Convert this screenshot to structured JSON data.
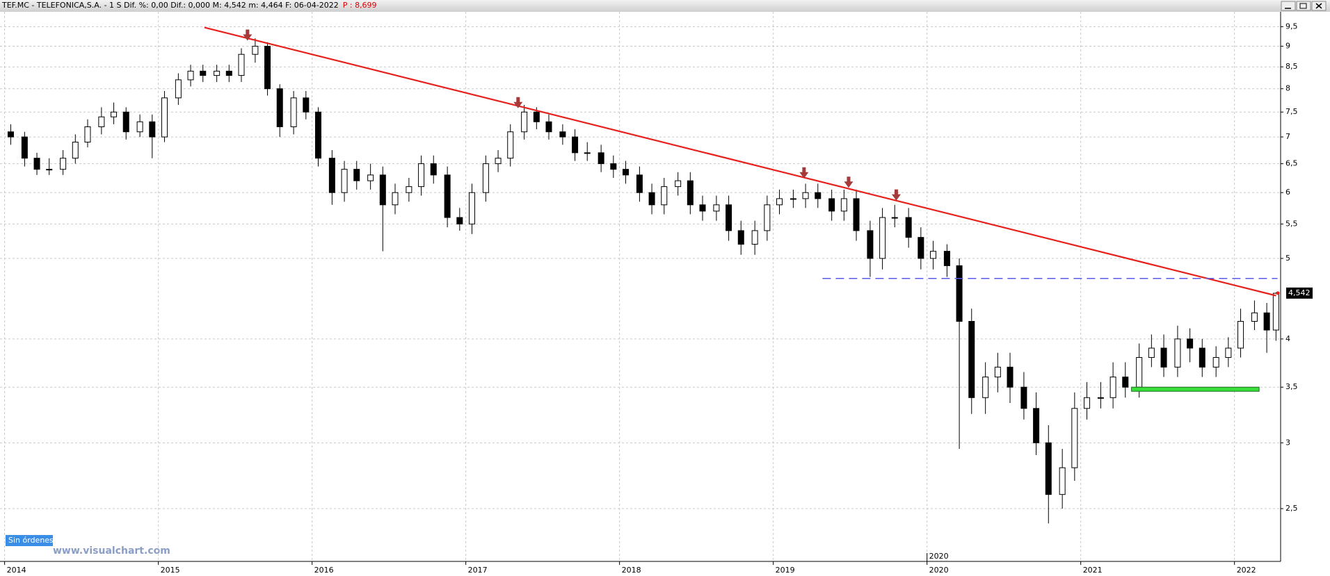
{
  "chart_data": {
    "type": "candlestick",
    "header": [
      "TEF.MC - TELEFONICA,S.A. -  1 S  Dif. %: 0,00  Dif.: 0,000  M: 4,542  m: 4,464  F: 06-04-2022",
      "P : 8,699"
    ],
    "x": [
      2014.04,
      2014.13,
      2014.21,
      2014.29,
      2014.38,
      2014.46,
      2014.54,
      2014.63,
      2014.71,
      2014.79,
      2014.88,
      2014.96,
      2015.04,
      2015.13,
      2015.21,
      2015.29,
      2015.38,
      2015.46,
      2015.54,
      2015.63,
      2015.71,
      2015.79,
      2015.88,
      2015.96,
      2016.04,
      2016.13,
      2016.21,
      2016.29,
      2016.38,
      2016.46,
      2016.54,
      2016.63,
      2016.71,
      2016.79,
      2016.88,
      2016.96,
      2017.04,
      2017.13,
      2017.21,
      2017.29,
      2017.38,
      2017.46,
      2017.54,
      2017.63,
      2017.71,
      2017.79,
      2017.88,
      2017.96,
      2018.04,
      2018.13,
      2018.21,
      2018.29,
      2018.38,
      2018.46,
      2018.54,
      2018.63,
      2018.71,
      2018.79,
      2018.88,
      2018.96,
      2019.04,
      2019.13,
      2019.21,
      2019.29,
      2019.38,
      2019.46,
      2019.54,
      2019.63,
      2019.71,
      2019.79,
      2019.88,
      2019.96,
      2020.04,
      2020.13,
      2020.21,
      2020.29,
      2020.38,
      2020.46,
      2020.54,
      2020.63,
      2020.71,
      2020.79,
      2020.88,
      2020.96,
      2021.04,
      2021.13,
      2021.21,
      2021.29,
      2021.38,
      2021.46,
      2021.54,
      2021.63,
      2021.71,
      2021.79,
      2021.88,
      2021.96,
      2022.04,
      2022.13,
      2022.21,
      2022.27
    ],
    "open": [
      7.1,
      7.0,
      6.6,
      6.4,
      6.4,
      6.6,
      6.9,
      7.2,
      7.4,
      7.5,
      7.1,
      7.3,
      7.0,
      7.8,
      8.2,
      8.4,
      8.3,
      8.4,
      8.3,
      8.8,
      9.0,
      8.0,
      7.2,
      7.8,
      7.5,
      6.6,
      6.0,
      6.4,
      6.2,
      6.3,
      5.8,
      6.0,
      6.1,
      6.5,
      6.3,
      5.6,
      5.5,
      6.0,
      6.5,
      6.6,
      7.1,
      7.5,
      7.3,
      7.1,
      7.0,
      6.7,
      6.7,
      6.5,
      6.4,
      6.3,
      6.0,
      5.8,
      6.1,
      6.2,
      5.8,
      5.7,
      5.8,
      5.4,
      5.2,
      5.4,
      5.8,
      5.9,
      5.9,
      6.0,
      5.9,
      5.7,
      5.9,
      5.4,
      5.0,
      5.6,
      5.6,
      5.3,
      5.0,
      5.1,
      4.9,
      4.2,
      3.4,
      3.6,
      3.7,
      3.5,
      3.3,
      3.0,
      2.6,
      2.8,
      3.3,
      3.4,
      3.4,
      3.6,
      3.5,
      3.8,
      3.9,
      3.7,
      4.0,
      3.9,
      3.7,
      3.8,
      3.9,
      4.2,
      4.3,
      4.1
    ],
    "high": [
      7.25,
      7.1,
      6.7,
      6.6,
      6.75,
      7.05,
      7.35,
      7.6,
      7.7,
      7.6,
      7.45,
      7.45,
      7.95,
      8.35,
      8.55,
      8.55,
      8.55,
      8.55,
      8.95,
      9.2,
      9.1,
      8.1,
      7.95,
      7.95,
      7.6,
      6.75,
      6.55,
      6.55,
      6.5,
      6.45,
      6.15,
      6.25,
      6.65,
      6.65,
      6.45,
      5.75,
      6.15,
      6.65,
      6.75,
      7.25,
      7.65,
      7.6,
      7.45,
      7.25,
      7.15,
      6.9,
      6.85,
      6.65,
      6.55,
      6.45,
      6.15,
      6.25,
      6.35,
      6.35,
      5.95,
      5.95,
      5.95,
      5.55,
      5.55,
      5.95,
      6.05,
      6.05,
      6.15,
      6.15,
      6.05,
      6.05,
      6.05,
      5.55,
      5.75,
      5.8,
      5.75,
      5.45,
      5.25,
      5.2,
      5.0,
      4.35,
      3.75,
      3.85,
      3.85,
      3.65,
      3.45,
      3.15,
      2.95,
      3.45,
      3.55,
      3.55,
      3.75,
      3.75,
      3.95,
      4.05,
      4.05,
      4.15,
      4.12,
      4.0,
      3.92,
      4.02,
      4.35,
      4.45,
      4.42,
      4.55
    ],
    "low": [
      6.85,
      6.45,
      6.3,
      6.3,
      6.3,
      6.5,
      6.8,
      7.05,
      7.25,
      6.95,
      7.0,
      6.6,
      6.9,
      7.65,
      8.05,
      8.15,
      8.15,
      8.15,
      8.15,
      8.6,
      7.85,
      7.0,
      7.05,
      7.35,
      6.45,
      5.8,
      5.85,
      6.05,
      6.05,
      5.1,
      5.65,
      5.85,
      5.95,
      6.15,
      5.45,
      5.4,
      5.35,
      5.85,
      6.35,
      6.45,
      6.95,
      7.15,
      6.95,
      6.85,
      6.55,
      6.55,
      6.35,
      6.25,
      6.15,
      5.85,
      5.65,
      5.65,
      5.95,
      5.65,
      5.55,
      5.55,
      5.25,
      5.05,
      5.05,
      5.25,
      5.65,
      5.75,
      5.75,
      5.75,
      5.55,
      5.55,
      5.25,
      4.75,
      4.85,
      5.45,
      5.15,
      4.85,
      4.85,
      4.75,
      2.95,
      3.25,
      3.25,
      3.45,
      3.35,
      3.2,
      2.9,
      2.4,
      2.5,
      2.7,
      3.2,
      3.3,
      3.3,
      3.4,
      3.4,
      3.7,
      3.6,
      3.6,
      3.75,
      3.6,
      3.6,
      3.7,
      3.8,
      4.1,
      3.85,
      3.98
    ],
    "close": [
      7.0,
      6.6,
      6.4,
      6.4,
      6.6,
      6.9,
      7.2,
      7.4,
      7.5,
      7.1,
      7.3,
      7.0,
      7.8,
      8.2,
      8.4,
      8.3,
      8.4,
      8.3,
      8.8,
      9.0,
      8.0,
      7.2,
      7.8,
      7.5,
      6.6,
      6.0,
      6.4,
      6.2,
      6.3,
      5.8,
      6.0,
      6.1,
      6.5,
      6.3,
      5.6,
      5.5,
      6.0,
      6.5,
      6.6,
      7.1,
      7.5,
      7.3,
      7.1,
      7.0,
      6.7,
      6.7,
      6.5,
      6.4,
      6.3,
      6.0,
      5.8,
      6.1,
      6.2,
      5.8,
      5.7,
      5.8,
      5.4,
      5.2,
      5.4,
      5.8,
      5.9,
      5.9,
      6.0,
      5.9,
      5.7,
      5.9,
      5.4,
      5.0,
      5.6,
      5.6,
      5.3,
      5.0,
      5.1,
      4.9,
      4.2,
      3.4,
      3.6,
      3.7,
      3.5,
      3.3,
      3.0,
      2.6,
      2.8,
      3.3,
      3.4,
      3.4,
      3.6,
      3.5,
      3.8,
      3.9,
      3.7,
      4.0,
      3.9,
      3.7,
      3.8,
      3.9,
      4.2,
      4.3,
      4.1,
      4.54
    ],
    "up_color": "#ffffff",
    "down_color": "#000000",
    "xlim": [
      2013.97,
      2022.3
    ],
    "ylim": [
      2.16,
      9.9
    ],
    "log_y": true,
    "grid": true,
    "xticks": [
      2014,
      2015,
      2016,
      2017,
      2018,
      2019,
      2020,
      2021,
      2022
    ],
    "yticks": [
      {
        "value": 2.5,
        "label": "2,5"
      },
      3,
      {
        "value": 3.5,
        "label": "3,5"
      },
      4,
      5,
      {
        "value": 5.5,
        "label": "5,5"
      },
      6,
      {
        "value": 6.5,
        "label": "6,5"
      },
      7,
      {
        "value": 7.5,
        "label": "7,5"
      },
      8,
      {
        "value": 8.5,
        "label": "8,5"
      },
      9,
      {
        "value": 9.5,
        "label": "9,5"
      }
    ],
    "last_price": {
      "value": 4.542,
      "label": "4,542"
    },
    "x_cursor": 2020,
    "trendline": {
      "x": [
        2015.3,
        2022.27
      ],
      "y": [
        9.48,
        4.51
      ],
      "color": "#e8201c"
    },
    "support_line": {
      "x": [
        2019.32,
        2022.28
      ],
      "y": 4.73,
      "color": "#5a5ae6"
    },
    "support_zone": {
      "x": [
        2021.33,
        2022.16
      ],
      "y": 3.48,
      "color": "#3ade3a"
    },
    "arrows": {
      "x": [
        2015.58,
        2017.34,
        2019.2,
        2019.49,
        2019.8
      ],
      "y": [
        9.14,
        7.58,
        6.24,
        6.08,
        5.87
      ],
      "color": "#a53a3a"
    },
    "orders_badge": "Sin órdenes",
    "watermark": "www.visualchart.com"
  }
}
